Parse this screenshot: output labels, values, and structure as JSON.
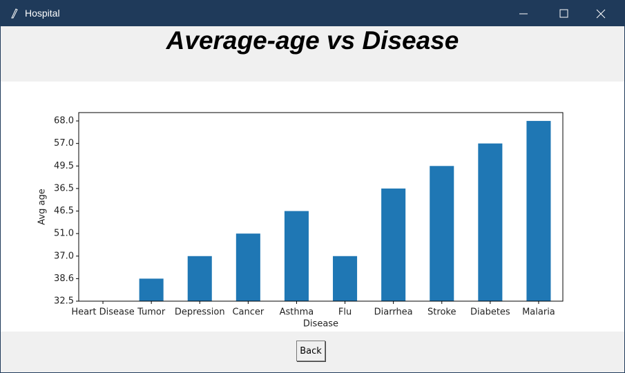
{
  "window": {
    "title": "Hospital"
  },
  "heading": "Average-age vs Disease",
  "chart_data": {
    "type": "bar",
    "categories": [
      "Heart Disease",
      "Tumor",
      "Depression",
      "Cancer",
      "Asthma",
      "Flu",
      "Diarrhea",
      "Stroke",
      "Diabetes",
      "Malaria"
    ],
    "values": [
      "32.5",
      "38.6",
      "37.0",
      "51.0",
      "46.5",
      "37.0",
      "36.5",
      "49.5",
      "57.0",
      "68.0"
    ],
    "ycategories": [
      "32.5",
      "38.6",
      "37.0",
      "51.0",
      "46.5",
      "36.5",
      "49.5",
      "57.0",
      "68.0"
    ],
    "xlabel": "Disease",
    "ylabel": "Avg age",
    "color": "#1f77b4"
  },
  "button": "Back"
}
